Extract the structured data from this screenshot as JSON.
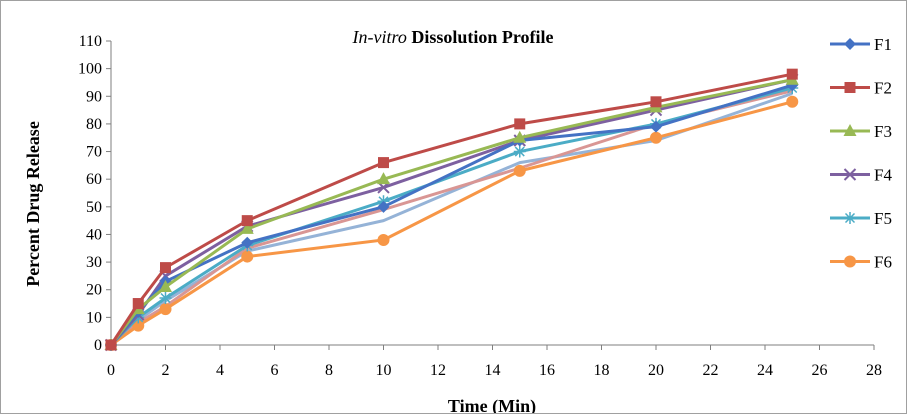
{
  "chart_data": {
    "type": "line",
    "title_italic": "In-vitro",
    "title_rest": " Dissolution Profile",
    "xlabel": "Time (Min)",
    "ylabel": "Percent Drug Release",
    "xlim": [
      0,
      28
    ],
    "ylim": [
      0,
      110
    ],
    "x_ticks": [
      0,
      2,
      4,
      6,
      8,
      10,
      12,
      14,
      16,
      18,
      20,
      22,
      24,
      26,
      28
    ],
    "y_ticks": [
      0,
      10,
      20,
      30,
      40,
      50,
      60,
      70,
      80,
      90,
      100,
      110
    ],
    "grid": false,
    "legend_position": "right",
    "x": [
      0,
      1,
      2,
      5,
      10,
      15,
      20,
      25
    ],
    "series": [
      {
        "name": "F1",
        "color": "#4472c4",
        "marker": "diamond",
        "values": [
          0,
          12,
          23,
          37,
          50,
          74,
          79,
          94
        ]
      },
      {
        "name": "F2",
        "color": "#be4b48",
        "marker": "square",
        "values": [
          0,
          15,
          28,
          45,
          66,
          80,
          88,
          98
        ]
      },
      {
        "name": "F3",
        "color": "#98b954",
        "marker": "triangle",
        "values": [
          0,
          13,
          21,
          42,
          60,
          75,
          86,
          96
        ]
      },
      {
        "name": "F4",
        "color": "#7d60a0",
        "marker": "x",
        "values": [
          0,
          11,
          25,
          43,
          57,
          74,
          85,
          96
        ]
      },
      {
        "name": "F5",
        "color": "#4bacc6",
        "marker": "star",
        "values": [
          0,
          10,
          17,
          36,
          52,
          70,
          80,
          93
        ]
      },
      {
        "name": "F6",
        "color": "#f79646",
        "marker": "circle",
        "values": [
          0,
          7,
          13,
          32,
          38,
          63,
          75,
          88
        ]
      },
      {
        "color": "#95b3d7",
        "marker": "none",
        "values": [
          0,
          9,
          16,
          34,
          45,
          66,
          74,
          91
        ]
      },
      {
        "color": "#d99694",
        "marker": "none",
        "values": [
          0,
          8,
          14,
          35,
          49,
          64,
          80,
          92
        ]
      }
    ]
  }
}
